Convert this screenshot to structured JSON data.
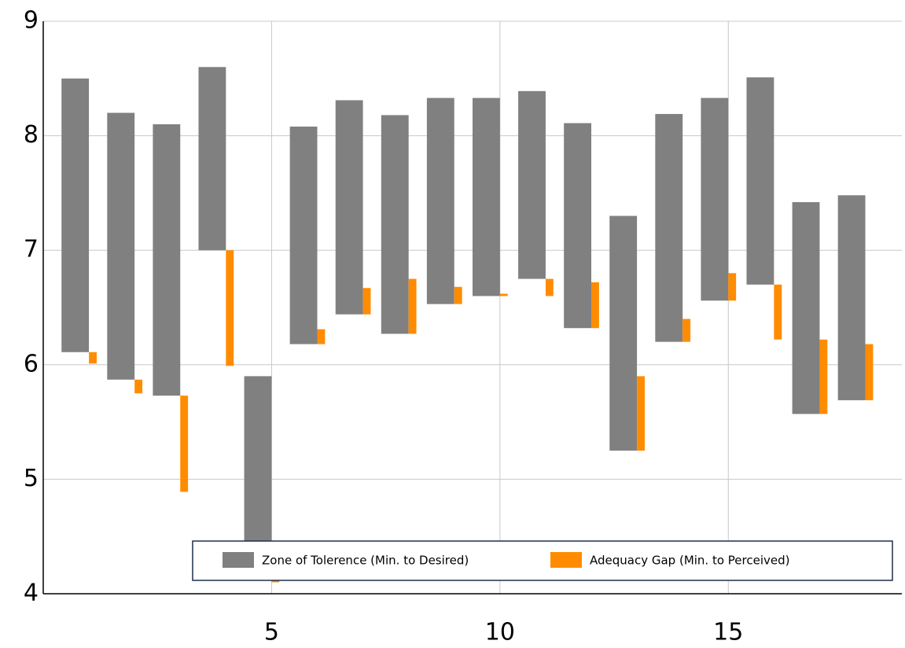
{
  "chart_data": {
    "type": "floating-bar",
    "x": [
      1,
      2,
      3,
      4,
      5,
      6,
      7,
      8,
      9,
      10,
      11,
      12,
      13,
      14,
      15,
      16,
      17,
      18
    ],
    "base": [
      6.11,
      5.87,
      5.73,
      7.0,
      4.2,
      6.18,
      6.44,
      6.27,
      6.53,
      6.6,
      6.75,
      6.32,
      5.25,
      6.2,
      6.56,
      6.7,
      5.57,
      5.69
    ],
    "series": [
      {
        "name": "Zone of Tolerence (Min. to Desired)",
        "color": "#808080",
        "values": [
          8.5,
          8.2,
          8.1,
          8.6,
          5.9,
          8.08,
          8.31,
          8.18,
          8.33,
          8.33,
          8.39,
          8.11,
          7.3,
          8.19,
          8.33,
          8.51,
          7.42,
          7.48
        ]
      },
      {
        "name": "Adequacy Gap (Min. to Perceived)",
        "color": "#ff8c00",
        "values": [
          6.01,
          5.75,
          4.89,
          5.99,
          4.1,
          6.31,
          6.67,
          6.75,
          6.68,
          6.62,
          6.6,
          6.72,
          5.9,
          6.4,
          6.8,
          6.22,
          6.22,
          6.18
        ]
      }
    ],
    "xlim": [
      0,
      18.8
    ],
    "xticks": [
      5,
      10,
      15
    ],
    "ylim": [
      4,
      9
    ],
    "yticks": [
      4,
      5,
      6,
      7,
      8,
      9
    ],
    "grid": true,
    "legend": "bottom"
  }
}
